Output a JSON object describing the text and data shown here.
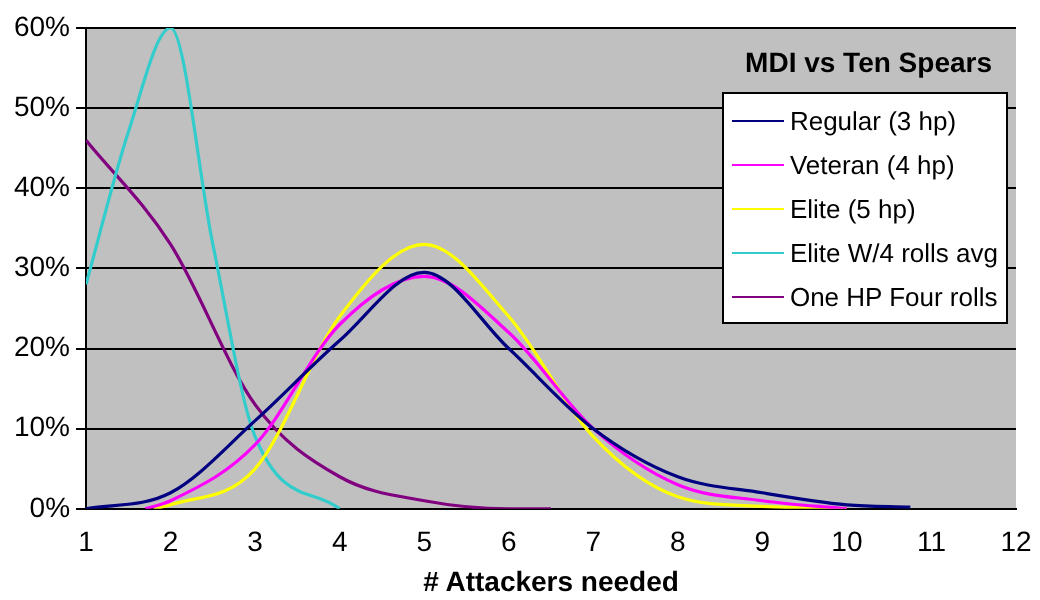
{
  "chart_data": {
    "type": "line",
    "title": "MDI vs Ten Spears",
    "xlabel": "# Attackers needed",
    "xlim": [
      1,
      12
    ],
    "xticks": [
      1,
      2,
      3,
      4,
      5,
      6,
      7,
      8,
      9,
      10,
      11,
      12
    ],
    "ylim": [
      0,
      60
    ],
    "yticks": [
      {
        "value": 0,
        "label": "0%"
      },
      {
        "value": 10,
        "label": "10%"
      },
      {
        "value": 20,
        "label": "20%"
      },
      {
        "value": 30,
        "label": "30%"
      },
      {
        "value": 40,
        "label": "40%"
      },
      {
        "value": 50,
        "label": "50%"
      },
      {
        "value": 60,
        "label": "60%"
      }
    ],
    "grid": "y",
    "legend": "top right",
    "marker": "none",
    "line_style": "solid",
    "series": [
      {
        "name": "Regular (3 hp)",
        "color": "#000080",
        "x": [
          1,
          2,
          3,
          4,
          5,
          6,
          7,
          8,
          9,
          10,
          10.75
        ],
        "values": [
          0,
          2,
          11,
          21,
          29.5,
          20,
          10,
          4,
          2,
          0.5,
          0.2
        ]
      },
      {
        "name": "Veteran (4 hp)",
        "color": "#ff00ff",
        "x": [
          1.7,
          2,
          3,
          4,
          5,
          6,
          7,
          8,
          9,
          10
        ],
        "values": [
          0,
          1,
          8,
          23,
          29,
          22,
          10,
          3,
          1,
          0
        ]
      },
      {
        "name": "Elite (5 hp)",
        "color": "#ffff00",
        "x": [
          1.8,
          2,
          3,
          4,
          5,
          6,
          7,
          8,
          9,
          10
        ],
        "values": [
          0,
          0.5,
          5,
          24,
          33,
          24,
          9,
          1.5,
          0.3,
          0
        ]
      },
      {
        "name": "Elite W/4 rolls avg",
        "color": "#33cccc",
        "x": [
          1,
          1.5,
          2,
          2.5,
          3,
          4
        ],
        "values": [
          28,
          47,
          60,
          33,
          9,
          0
        ]
      },
      {
        "name": "One HP Four rolls",
        "color": "#800080",
        "x": [
          1,
          2,
          3,
          4,
          5,
          6,
          6.5
        ],
        "values": [
          46,
          33,
          13,
          4,
          1,
          0,
          0
        ]
      }
    ]
  }
}
